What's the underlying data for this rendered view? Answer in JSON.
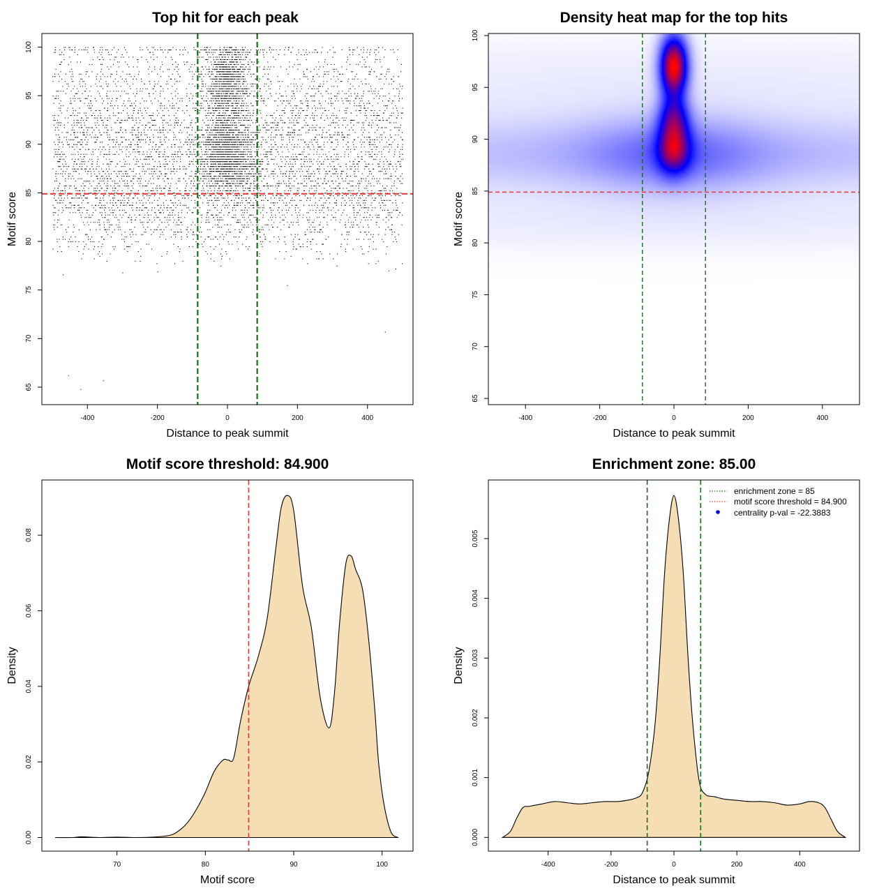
{
  "colors": {
    "point": "#000000",
    "threshold": "#e23a3a",
    "zone": "#1a6b1a",
    "fill": "#f5deb3",
    "heat_low": "#ffffff",
    "heat_mid": "#0000ff",
    "heat_high": "#ff0000",
    "legend_dot": "#0000ff"
  },
  "chart_data": [
    {
      "type": "scatter",
      "title": "Top hit for each peak",
      "xlabel": "Distance to peak summit",
      "ylabel": "Motif score",
      "xlim": [
        -530,
        530
      ],
      "ylim": [
        63.2,
        101.4
      ],
      "xticks": [
        "-400",
        "-200",
        "0",
        "200",
        "400"
      ],
      "yticks": [
        "65",
        "70",
        "75",
        "80",
        "85",
        "90",
        "95",
        "100"
      ],
      "point_count": 9000,
      "hlines": [
        {
          "y": 84.9,
          "color": "threshold"
        }
      ],
      "vlines": [
        {
          "x": -85,
          "color": "zone"
        },
        {
          "x": 85,
          "color": "zone"
        }
      ],
      "clusters": [
        {
          "weight": 0.33,
          "x_range": [
            -500,
            500
          ],
          "y_mean": 89,
          "y_sd": 3.4
        },
        {
          "weight": 0.16,
          "x_range": [
            -500,
            500
          ],
          "y_mean": 95.5,
          "y_sd": 3.2
        },
        {
          "weight": 0.17,
          "x_range": [
            -500,
            500
          ],
          "y_mean": 83,
          "y_sd": 2.4
        },
        {
          "weight": 0.14,
          "x_mean": 0,
          "x_sd": 30,
          "y_mean": 96.5,
          "y_sd": 2.0
        },
        {
          "weight": 0.1,
          "x_mean": 0,
          "x_sd": 32,
          "y_mean": 90,
          "y_sd": 1.8
        },
        {
          "weight": 0.1,
          "x_mean": 0,
          "x_sd": 45,
          "y_mean": 88,
          "y_sd": 1.6
        }
      ],
      "outliers": [
        [
          -470,
          76.6
        ],
        [
          -300,
          76.8
        ],
        [
          -420,
          64.8
        ],
        [
          -455,
          66.2
        ],
        [
          -355,
          65.7
        ],
        [
          170,
          75.5
        ],
        [
          450,
          70.7
        ],
        [
          460,
          77.0
        ],
        [
          480,
          77.2
        ],
        [
          -200,
          76.9
        ]
      ]
    },
    {
      "type": "heatmap",
      "title": "Density heat map for the top hits",
      "xlabel": "Distance to peak summit",
      "ylabel": "Motif score",
      "xlim": [
        -500,
        500
      ],
      "ylim": [
        64.4,
        100.2
      ],
      "xticks": [
        "-400",
        "-200",
        "0",
        "200",
        "400"
      ],
      "yticks": [
        "65",
        "70",
        "75",
        "80",
        "85",
        "90",
        "95",
        "100"
      ],
      "hlines": [
        {
          "y": 84.9,
          "color": "threshold"
        }
      ],
      "vlines": [
        {
          "x": -85,
          "color": "zone"
        },
        {
          "x": 85,
          "color": "zone"
        }
      ],
      "density_components": [
        {
          "x_mean": 0,
          "x_sd": 25,
          "y_mean": 97,
          "y_sd": 2.0,
          "weight": 1.0
        },
        {
          "x_mean": 0,
          "x_sd": 28,
          "y_mean": 92,
          "y_sd": 1.5,
          "weight": 0.5
        },
        {
          "x_mean": 0,
          "x_sd": 30,
          "y_mean": 89,
          "y_sd": 1.6,
          "weight": 0.6
        },
        {
          "x_mean": 0,
          "x_sd": 160,
          "y_mean": 88.5,
          "y_sd": 2.4,
          "weight": 0.18
        },
        {
          "x_mean": 0,
          "x_sd": 1000,
          "y_mean": 88.5,
          "y_sd": 2.5,
          "weight": 0.12
        },
        {
          "x_mean": 0,
          "x_sd": 1000,
          "y_mean": 95.5,
          "y_sd": 3.0,
          "weight": 0.03
        },
        {
          "x_mean": 0,
          "x_sd": 1000,
          "y_mean": 82,
          "y_sd": 2.0,
          "weight": 0.03
        }
      ]
    },
    {
      "type": "area",
      "title": "Motif score threshold: 84.900",
      "xlabel": "Motif score",
      "ylabel": "Density",
      "xlim": [
        61.5,
        103.5
      ],
      "ylim": [
        -0.0036,
        0.0946
      ],
      "xticks": [
        70,
        80,
        90,
        100
      ],
      "yticks": [
        "0.00",
        "0.02",
        "0.04",
        "0.06",
        "0.08"
      ],
      "vlines": [
        {
          "x": 84.9,
          "color": "threshold"
        }
      ],
      "x": [
        63,
        65,
        66,
        68,
        70,
        72,
        74,
        76,
        77,
        78,
        79,
        80,
        81,
        82,
        82.6,
        83.2,
        84,
        84.9,
        86,
        87,
        88,
        88.6,
        89.3,
        90,
        91,
        92,
        93,
        94,
        94.6,
        95.2,
        95.9,
        96.5,
        97,
        97.8,
        98.5,
        99.2,
        99.6,
        100.2,
        101,
        101.8
      ],
      "y": [
        0.0,
        0.0,
        0.0002,
        0.0,
        0.0001,
        0.0,
        0.0001,
        0.0006,
        0.0018,
        0.004,
        0.0075,
        0.012,
        0.0175,
        0.0205,
        0.0205,
        0.021,
        0.031,
        0.04,
        0.048,
        0.058,
        0.077,
        0.0875,
        0.0905,
        0.0865,
        0.0665,
        0.0555,
        0.037,
        0.029,
        0.038,
        0.057,
        0.0725,
        0.0745,
        0.071,
        0.0655,
        0.052,
        0.033,
        0.02,
        0.009,
        0.0015,
        0.0
      ]
    },
    {
      "type": "area",
      "title": "Enrichment zone: 85.00",
      "xlabel": "Distance to peak summit",
      "ylabel": "Density",
      "xlim": [
        -590,
        590
      ],
      "ylim": [
        -0.00023,
        0.00598
      ],
      "xticks": [
        "-400",
        "-200",
        "0",
        "200",
        "400"
      ],
      "yticks": [
        "0.000",
        "0.001",
        "0.002",
        "0.003",
        "0.004",
        "0.005"
      ],
      "vlines": [
        {
          "x": -85,
          "color": "zone"
        },
        {
          "x": 85,
          "color": "zone"
        }
      ],
      "x": [
        -545,
        -520,
        -500,
        -480,
        -460,
        -420,
        -380,
        -340,
        -300,
        -260,
        -220,
        -180,
        -150,
        -120,
        -100,
        -80,
        -60,
        -45,
        -30,
        -15,
        0,
        15,
        30,
        45,
        60,
        80,
        100,
        130,
        160,
        200,
        240,
        280,
        320,
        360,
        400,
        430,
        460,
        480,
        500,
        520,
        545
      ],
      "y": [
        0.0,
        0.0001,
        0.00032,
        0.0005,
        0.00052,
        0.00056,
        0.0006,
        0.00058,
        0.00056,
        0.00058,
        0.0006,
        0.0006,
        0.00062,
        0.00066,
        0.00075,
        0.0011,
        0.0019,
        0.003,
        0.0044,
        0.0053,
        0.00572,
        0.0053,
        0.0044,
        0.003,
        0.0019,
        0.00095,
        0.00072,
        0.00068,
        0.00064,
        0.00062,
        0.0006,
        0.0006,
        0.00058,
        0.00054,
        0.00056,
        0.0006,
        0.00058,
        0.0005,
        0.0003,
        0.0001,
        0.0
      ],
      "legend": {
        "position": "top-right",
        "items": [
          {
            "label": "enrichment zone = 85",
            "style": "dotted-line",
            "color": "zone"
          },
          {
            "label": "motif score threshold = 84.900",
            "style": "dotted-line",
            "color": "threshold"
          },
          {
            "label": "centrality p-val = -22.3883",
            "style": "dot",
            "color": "legend_dot"
          }
        ]
      }
    }
  ]
}
